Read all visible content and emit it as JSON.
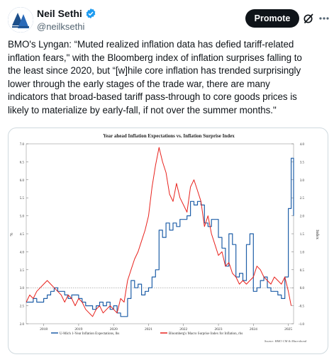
{
  "header": {
    "display_name": "Neil Sethi",
    "handle": "@neilksethi",
    "promote_label": "Promote"
  },
  "icons": [
    "avatar-logo",
    "verified-badge-icon",
    "grok-icon",
    "more-icon"
  ],
  "colors": {
    "accent": "#1d9bf0",
    "dark_button": "#0f1419",
    "secondary_text": "#536471"
  },
  "tweet": {
    "lines": [
      "BMO's Lyngan: “Muted realized inflation data has defied tariff-related",
      "inflation fears,\" with the Bloomberg index of inflation surprises falling to",
      "the least since 2020, but “[w]hile core inflation has trended surprisingly",
      "lower through the early stages of the trade war, there are many",
      "indicators that broad-based tariff pass-through to core goods prices is",
      "likely to materialize by early-fall, if not over the summer months.\""
    ]
  },
  "chart_data": {
    "type": "line",
    "title": "Year ahead Inflation Expectations vs. Inflation Surprise Index",
    "ylabel_left": "%",
    "ylabel_right": "Index",
    "ylim_left": [
      2.0,
      7.0
    ],
    "ylim_right": [
      -1.0,
      4.0
    ],
    "left_ticks": [
      "2.0",
      "2.5",
      "3.0",
      "3.5",
      "4.0",
      "4.5",
      "5.0",
      "5.5",
      "6.0",
      "6.5",
      "7.0"
    ],
    "right_ticks": [
      "-1.0",
      "-0.5",
      "0.0",
      "0.5",
      "1.0",
      "1.5",
      "2.0",
      "2.5",
      "3.0",
      "3.5",
      "4.0"
    ],
    "x_ticks": [
      "2018",
      "2019",
      "2020",
      "2021",
      "2022",
      "2023",
      "2024",
      "2025"
    ],
    "xlim": [
      2017.5,
      2025.15
    ],
    "legend": [
      "U-Mich 1-Year Inflation Expectations, lhs",
      "Bloomberg's Macro Surprise Index for Inflation, rhs"
    ],
    "legend_position": "bottom",
    "source": "Source: BMO CM & Macrobond",
    "grid": false,
    "series": [
      {
        "name": "U-Mich 1-Year Inflation Expectations, lhs",
        "color": "#1f5fa8",
        "axis": "left",
        "step": true,
        "x": [
          2017.5,
          2017.6,
          2017.7,
          2017.8,
          2017.9,
          2018.0,
          2018.1,
          2018.2,
          2018.3,
          2018.4,
          2018.5,
          2018.6,
          2018.7,
          2018.8,
          2018.9,
          2019.0,
          2019.1,
          2019.2,
          2019.3,
          2019.4,
          2019.5,
          2019.6,
          2019.7,
          2019.8,
          2019.9,
          2020.0,
          2020.1,
          2020.2,
          2020.3,
          2020.4,
          2020.5,
          2020.6,
          2020.7,
          2020.8,
          2020.9,
          2021.0,
          2021.1,
          2021.2,
          2021.3,
          2021.4,
          2021.5,
          2021.6,
          2021.7,
          2021.8,
          2021.9,
          2022.0,
          2022.1,
          2022.2,
          2022.3,
          2022.4,
          2022.5,
          2022.6,
          2022.7,
          2022.8,
          2022.9,
          2023.0,
          2023.1,
          2023.2,
          2023.3,
          2023.4,
          2023.5,
          2023.6,
          2023.7,
          2023.8,
          2023.9,
          2024.0,
          2024.1,
          2024.2,
          2024.3,
          2024.4,
          2024.5,
          2024.6,
          2024.7,
          2024.8,
          2024.9,
          2025.0,
          2025.08,
          2025.15
        ],
        "values": [
          2.6,
          2.6,
          2.7,
          2.6,
          2.6,
          2.7,
          2.8,
          2.9,
          3.0,
          2.9,
          2.9,
          2.8,
          2.7,
          2.8,
          2.8,
          2.7,
          2.6,
          2.5,
          2.5,
          2.4,
          2.5,
          2.6,
          2.5,
          2.6,
          2.4,
          2.5,
          2.3,
          2.2,
          2.2,
          2.7,
          3.2,
          3.0,
          3.1,
          2.8,
          2.9,
          3.0,
          3.3,
          3.5,
          4.6,
          4.4,
          4.8,
          4.6,
          4.8,
          4.7,
          4.9,
          4.9,
          5.0,
          5.4,
          5.3,
          5.4,
          5.3,
          4.8,
          4.7,
          4.9,
          4.9,
          4.4,
          4.1,
          3.6,
          4.5,
          4.2,
          3.3,
          3.4,
          3.2,
          4.2,
          4.5,
          2.9,
          3.0,
          3.2,
          3.3,
          3.0,
          2.9,
          2.9,
          2.8,
          2.7,
          3.3,
          5.2,
          6.6,
          5.0
        ]
      },
      {
        "name": "Bloomberg's Macro Surprise Index for Inflation, rhs",
        "color": "#e8221d",
        "axis": "right",
        "step": false,
        "x": [
          2017.5,
          2017.6,
          2017.7,
          2017.8,
          2017.9,
          2018.0,
          2018.1,
          2018.2,
          2018.3,
          2018.4,
          2018.5,
          2018.6,
          2018.7,
          2018.8,
          2018.9,
          2019.0,
          2019.1,
          2019.2,
          2019.3,
          2019.4,
          2019.5,
          2019.6,
          2019.7,
          2019.8,
          2019.9,
          2020.0,
          2020.1,
          2020.2,
          2020.3,
          2020.4,
          2020.5,
          2020.6,
          2020.7,
          2020.8,
          2020.9,
          2021.0,
          2021.1,
          2021.2,
          2021.3,
          2021.4,
          2021.5,
          2021.6,
          2021.7,
          2021.8,
          2021.9,
          2022.0,
          2022.1,
          2022.2,
          2022.3,
          2022.4,
          2022.5,
          2022.6,
          2022.7,
          2022.8,
          2022.9,
          2023.0,
          2023.1,
          2023.2,
          2023.3,
          2023.4,
          2023.5,
          2023.6,
          2023.7,
          2023.8,
          2023.9,
          2024.0,
          2024.1,
          2024.2,
          2024.3,
          2024.4,
          2024.5,
          2024.6,
          2024.7,
          2024.8,
          2024.9,
          2025.0,
          2025.08
        ],
        "values": [
          -0.4,
          -0.2,
          -0.3,
          -0.1,
          0.0,
          0.1,
          0.2,
          0.1,
          0.0,
          -0.1,
          -0.2,
          -0.4,
          -0.2,
          -0.3,
          -0.5,
          -0.3,
          -0.4,
          -0.6,
          -0.7,
          -0.8,
          -0.6,
          -0.5,
          -0.7,
          -0.6,
          -0.5,
          -0.6,
          -0.7,
          -0.3,
          -0.4,
          0.2,
          0.5,
          0.8,
          1.0,
          1.3,
          1.6,
          2.0,
          2.8,
          3.4,
          3.9,
          3.5,
          3.2,
          2.6,
          2.4,
          2.9,
          2.5,
          2.3,
          2.1,
          2.8,
          3.0,
          2.7,
          2.4,
          1.7,
          2.0,
          1.5,
          1.2,
          0.9,
          1.0,
          0.6,
          0.7,
          0.4,
          0.3,
          0.1,
          0.2,
          0.1,
          0.2,
          0.3,
          0.6,
          0.5,
          0.3,
          0.2,
          0.1,
          0.3,
          0.2,
          0.1,
          0.3,
          -0.1,
          -0.5
        ]
      }
    ]
  }
}
